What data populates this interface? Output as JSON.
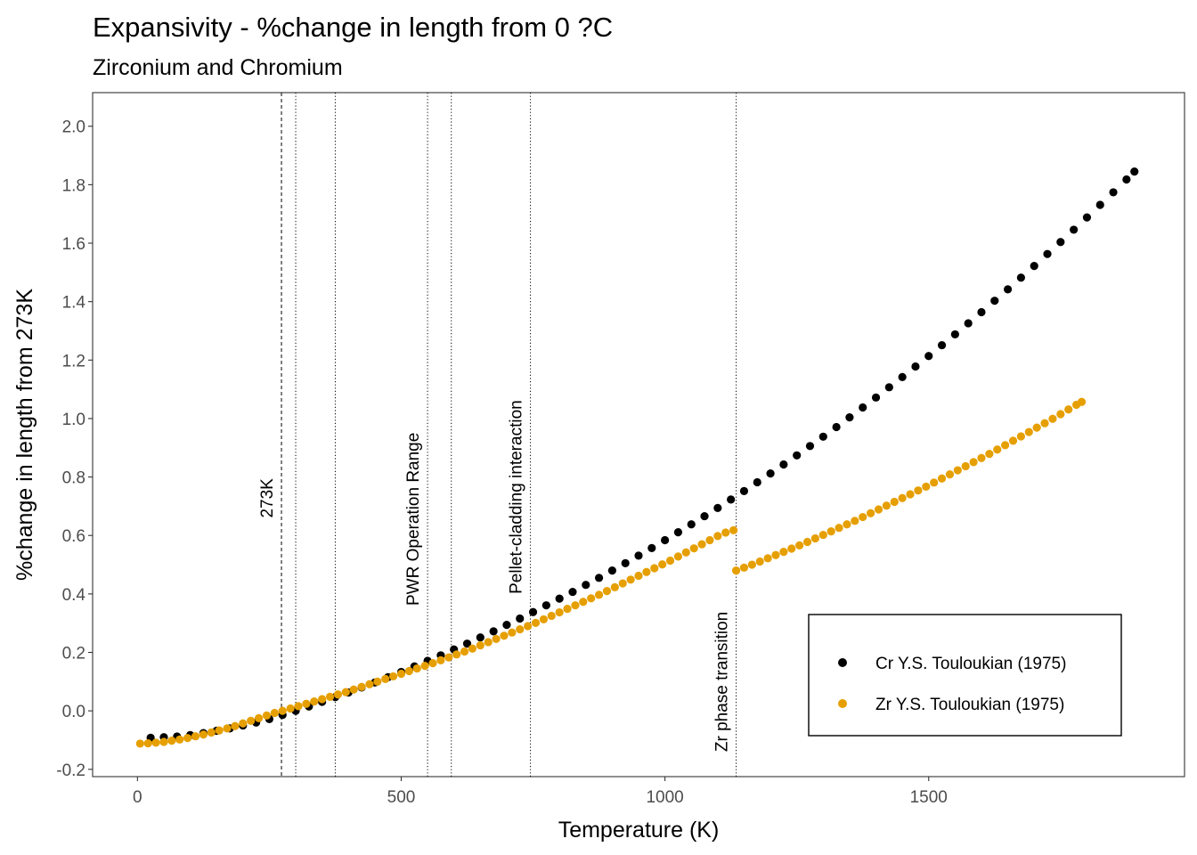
{
  "chart_data": {
    "type": "scatter",
    "title": "Expansivity - %change in length from 0 ?C",
    "subtitle": "Zirconium and Chromium",
    "xlabel": "Temperature (K)",
    "ylabel": "%change in length from 273K",
    "xlim": [
      -85,
      1985
    ],
    "ylim": [
      -0.225,
      2.115
    ],
    "xticks": [
      0,
      500,
      1000,
      1500
    ],
    "yticks": [
      -0.2,
      0.0,
      0.2,
      0.4,
      0.6,
      0.8,
      1.0,
      1.2,
      1.4,
      1.6,
      1.8,
      2.0
    ],
    "ytick_labels": [
      "-0.2",
      "0.0",
      "0.2",
      "0.4",
      "0.6",
      "0.8",
      "1.0",
      "1.2",
      "1.4",
      "1.6",
      "1.8",
      "2.0"
    ],
    "grid": false,
    "legend_position": "bottom-right",
    "vlines": [
      {
        "x": 273,
        "style": "dashed",
        "label": "273K"
      },
      {
        "x": 300,
        "style": "dotted",
        "label": ""
      },
      {
        "x": 375,
        "style": "dotted",
        "label": ""
      },
      {
        "x": 550,
        "style": "dotted",
        "label": "PWR Operation Range"
      },
      {
        "x": 595,
        "style": "dotted",
        "label": ""
      },
      {
        "x": 745,
        "style": "dotted",
        "label": "Pellet-cladding interaction"
      },
      {
        "x": 1135,
        "style": "dotted",
        "label": "Zr phase transition"
      }
    ],
    "series": [
      {
        "name": "Cr Y.S. Touloukian (1975)",
        "color": "#000000",
        "x": [
          25,
          50,
          75,
          100,
          125,
          150,
          175,
          200,
          225,
          250,
          275,
          300,
          325,
          350,
          375,
          400,
          425,
          450,
          475,
          500,
          525,
          550,
          575,
          600,
          625,
          650,
          675,
          700,
          725,
          750,
          775,
          800,
          825,
          850,
          875,
          900,
          925,
          950,
          975,
          1000,
          1025,
          1050,
          1075,
          1100,
          1125,
          1150,
          1175,
          1200,
          1225,
          1250,
          1275,
          1300,
          1325,
          1350,
          1375,
          1400,
          1425,
          1450,
          1475,
          1500,
          1525,
          1550,
          1575,
          1600,
          1625,
          1650,
          1675,
          1700,
          1725,
          1750,
          1775,
          1800,
          1825,
          1850,
          1875,
          1890
        ],
        "y": [
          -0.092,
          -0.09,
          -0.088,
          -0.083,
          -0.076,
          -0.068,
          -0.06,
          -0.05,
          -0.04,
          -0.028,
          -0.014,
          0.0,
          0.015,
          0.031,
          0.047,
          0.063,
          0.08,
          0.097,
          0.115,
          0.133,
          0.152,
          0.171,
          0.19,
          0.21,
          0.23,
          0.251,
          0.272,
          0.294,
          0.316,
          0.338,
          0.361,
          0.384,
          0.407,
          0.431,
          0.455,
          0.48,
          0.505,
          0.531,
          0.557,
          0.584,
          0.611,
          0.638,
          0.666,
          0.694,
          0.723,
          0.752,
          0.782,
          0.812,
          0.843,
          0.874,
          0.906,
          0.938,
          0.971,
          1.004,
          1.038,
          1.072,
          1.107,
          1.142,
          1.178,
          1.214,
          1.251,
          1.288,
          1.326,
          1.364,
          1.403,
          1.442,
          1.482,
          1.522,
          1.563,
          1.604,
          1.646,
          1.688,
          1.731,
          1.774,
          1.818,
          1.845
        ]
      },
      {
        "name": "Zr Y.S. Touloukian (1975)",
        "color": "#E69F00",
        "x": [
          5,
          20,
          35,
          50,
          65,
          80,
          95,
          110,
          125,
          140,
          155,
          170,
          185,
          200,
          215,
          230,
          245,
          260,
          275,
          290,
          305,
          320,
          335,
          350,
          365,
          380,
          395,
          410,
          425,
          440,
          455,
          470,
          485,
          500,
          515,
          530,
          545,
          560,
          575,
          590,
          605,
          620,
          635,
          650,
          665,
          680,
          695,
          710,
          725,
          740,
          755,
          770,
          785,
          800,
          815,
          830,
          845,
          860,
          875,
          890,
          905,
          920,
          935,
          950,
          965,
          980,
          995,
          1010,
          1025,
          1040,
          1055,
          1070,
          1085,
          1100,
          1115,
          1130,
          1135,
          1150,
          1165,
          1180,
          1195,
          1210,
          1225,
          1240,
          1255,
          1270,
          1285,
          1300,
          1315,
          1330,
          1345,
          1360,
          1375,
          1390,
          1405,
          1420,
          1435,
          1450,
          1465,
          1480,
          1495,
          1510,
          1525,
          1540,
          1555,
          1570,
          1585,
          1600,
          1615,
          1630,
          1645,
          1660,
          1675,
          1690,
          1705,
          1720,
          1735,
          1750,
          1765,
          1780,
          1790
        ],
        "y": [
          -0.112,
          -0.111,
          -0.109,
          -0.106,
          -0.102,
          -0.098,
          -0.093,
          -0.087,
          -0.081,
          -0.074,
          -0.067,
          -0.06,
          -0.052,
          -0.043,
          -0.034,
          -0.025,
          -0.016,
          -0.007,
          0.0,
          0.008,
          0.016,
          0.024,
          0.032,
          0.04,
          0.048,
          0.056,
          0.064,
          0.073,
          0.082,
          0.091,
          0.1,
          0.109,
          0.118,
          0.127,
          0.136,
          0.145,
          0.154,
          0.163,
          0.173,
          0.183,
          0.193,
          0.203,
          0.213,
          0.224,
          0.235,
          0.246,
          0.257,
          0.268,
          0.279,
          0.29,
          0.301,
          0.313,
          0.325,
          0.337,
          0.349,
          0.361,
          0.373,
          0.385,
          0.397,
          0.41,
          0.423,
          0.436,
          0.449,
          0.462,
          0.475,
          0.488,
          0.501,
          0.514,
          0.528,
          0.542,
          0.556,
          0.57,
          0.584,
          0.598,
          0.61,
          0.618,
          0.48,
          0.49,
          0.5,
          0.511,
          0.522,
          0.533,
          0.544,
          0.555,
          0.566,
          0.578,
          0.59,
          0.602,
          0.614,
          0.626,
          0.638,
          0.65,
          0.663,
          0.676,
          0.689,
          0.702,
          0.715,
          0.728,
          0.741,
          0.754,
          0.767,
          0.781,
          0.795,
          0.809,
          0.823,
          0.837,
          0.851,
          0.865,
          0.879,
          0.894,
          0.909,
          0.924,
          0.939,
          0.954,
          0.969,
          0.984,
          0.999,
          1.015,
          1.031,
          1.047,
          1.057
        ]
      }
    ]
  }
}
